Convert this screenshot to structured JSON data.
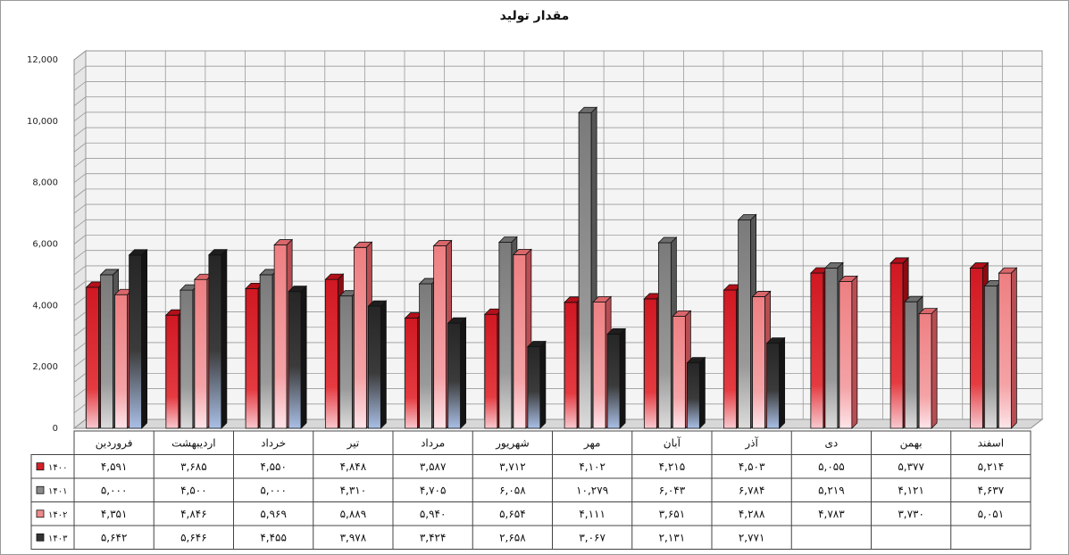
{
  "chart_data": {
    "type": "bar",
    "title": "مقدار تولید",
    "xlabel": "",
    "ylabel": "",
    "ylim": [
      0,
      12000
    ],
    "y_ticks": [
      "0",
      "2,000",
      "4,000",
      "6,000",
      "8,000",
      "10,000",
      "12,000"
    ],
    "grid": true,
    "legend": "data-table-left",
    "categories": [
      "فروردین",
      "اردیبهشت",
      "خرداد",
      "تیر",
      "مرداد",
      "شهریور",
      "مهر",
      "آبان",
      "آذر",
      "دی",
      "بهمن",
      "اسفند"
    ],
    "series": [
      {
        "name": "1400",
        "label": "۱۴۰۰",
        "color": "#d42027",
        "values": [
          4591,
          3685,
          4550,
          4848,
          3587,
          3712,
          4102,
          4215,
          4503,
          5055,
          5377,
          5214
        ],
        "labels": [
          "۴,۵۹۱",
          "۳,۶۸۵",
          "۴,۵۵۰",
          "۴,۸۴۸",
          "۳,۵۸۷",
          "۳,۷۱۲",
          "۴,۱۰۲",
          "۴,۲۱۵",
          "۴,۵۰۳",
          "۵,۰۵۵",
          "۵,۳۷۷",
          "۵,۲۱۴"
        ]
      },
      {
        "name": "1401",
        "label": "۱۴۰۱",
        "color": "#8a8a8a",
        "values": [
          5000,
          4500,
          5000,
          4310,
          4705,
          6058,
          10279,
          6043,
          6784,
          5219,
          4121,
          4637
        ],
        "labels": [
          "۵,۰۰۰",
          "۴,۵۰۰",
          "۵,۰۰۰",
          "۴,۳۱۰",
          "۴,۷۰۵",
          "۶,۰۵۸",
          "۱۰,۲۷۹",
          "۶,۰۴۳",
          "۶,۷۸۴",
          "۵,۲۱۹",
          "۴,۱۲۱",
          "۴,۶۳۷"
        ]
      },
      {
        "name": "1402",
        "label": "۱۴۰۲",
        "color": "#f08a8a",
        "values": [
          4351,
          4846,
          5969,
          5889,
          5940,
          5654,
          4111,
          3651,
          4288,
          4783,
          3730,
          5051
        ],
        "labels": [
          "۴,۳۵۱",
          "۴,۸۴۶",
          "۵,۹۶۹",
          "۵,۸۸۹",
          "۵,۹۴۰",
          "۵,۶۵۴",
          "۴,۱۱۱",
          "۳,۶۵۱",
          "۴,۲۸۸",
          "۴,۷۸۳",
          "۳,۷۳۰",
          "۵,۰۵۱"
        ]
      },
      {
        "name": "1403",
        "label": "۱۴۰۳",
        "color": "#333333",
        "values": [
          5642,
          5646,
          4455,
          3978,
          3424,
          2658,
          3067,
          2131,
          2771,
          null,
          null,
          null
        ],
        "labels": [
          "۵,۶۴۲",
          "۵,۶۴۶",
          "۴,۴۵۵",
          "۳,۹۷۸",
          "۳,۴۲۴",
          "۲,۶۵۸",
          "۳,۰۶۷",
          "۲,۱۳۱",
          "۲,۷۷۱",
          "",
          "",
          ""
        ]
      }
    ]
  }
}
